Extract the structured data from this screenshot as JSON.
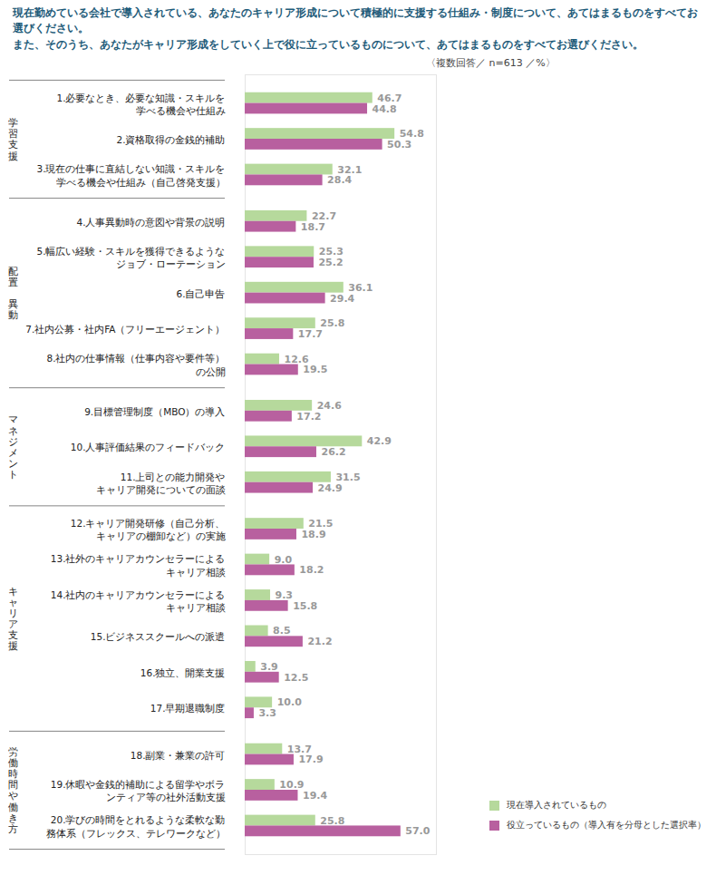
{
  "chart_data": {
    "type": "bar",
    "orientation": "horizontal",
    "title": "現在勤めている会社で導入されている、あなたのキャリア形成について積極的に支援する仕組み・制度について、あてはまるものをすべてお選びください。",
    "subtitle": "また、そのうち、あなたがキャリア形成をしていく上で役に立っているものについて、あてはまるものをすべてお選びください。",
    "annotation": "〈複数回答／ n=613 ／%〉",
    "categories": [
      "1.必要なとき、必要な知識・スキルを\n学べる機会や仕組み",
      "2.資格取得の金銭的補助",
      "3.現在の仕事に直結しない知識・スキルを\n学べる機会や仕組み（自己啓発支援）",
      "4.人事異動時の意図や背景の説明",
      "5.幅広い経験・スキルを獲得できるような\nジョブ・ローテーション",
      "6.自己申告",
      "7.社内公募・社内FA（フリーエージェント）",
      "8.社内の仕事情報（仕事内容や要件等）\nの公開",
      "9.目標管理制度（MBO）の導入",
      "10.人事評価結果のフィードバック",
      "11.上司との能力開発や\nキャリア開発についての面談",
      "12.キャリア開発研修（自己分析、\nキャリアの棚卸など）の実施",
      "13.社外のキャリアカウンセラーによる\nキャリア相談",
      "14.社内のキャリアカウンセラーによる\nキャリア相談",
      "15.ビジネススクールへの派遣",
      "16.独立、開業支援",
      "17.早期退職制度",
      "18.副業・兼業の許可",
      "19.休暇や金銭的補助による留学やボラ\nンティア等の社外活動支援",
      "20.学びの時間をとれるような柔軟な勤\n務体系（フレックス、テレワークなど）"
    ],
    "groups": [
      "学習支援",
      "学習支援",
      "学習支援",
      "配置 異動",
      "配置 異動",
      "配置 異動",
      "配置 異動",
      "配置 異動",
      "マネジメント",
      "マネジメント",
      "マネジメント",
      "キャリア支援",
      "キャリア支援",
      "キャリア支援",
      "キャリア支援",
      "キャリア支援",
      "キャリア支援",
      "労働時間や働き方",
      "労働時間や働き方",
      "労働時間や働き方"
    ],
    "series": [
      {
        "name": "現在導入されているもの",
        "color": "#b6d99c",
        "values": [
          46.7,
          54.8,
          32.1,
          22.7,
          25.3,
          36.1,
          25.8,
          12.6,
          24.6,
          42.9,
          31.5,
          21.5,
          9.0,
          9.3,
          8.5,
          3.9,
          10.0,
          13.7,
          10.9,
          25.8
        ],
        "value_labels": [
          "46.7",
          "54.8",
          "32.1",
          "22.7",
          "25.3",
          "36.1",
          "25.8",
          "12.6",
          "24.6",
          "42.9",
          "31.5",
          "21.5",
          "9.0",
          "9.3",
          "8.5",
          "3.9",
          "10.0",
          "13.7",
          "10.9",
          "25.8"
        ]
      },
      {
        "name": "役立っているもの（導入有を分母とした選択率）",
        "color": "#b8609f",
        "values": [
          44.8,
          50.3,
          28.4,
          18.7,
          25.2,
          29.4,
          17.7,
          19.5,
          17.2,
          26.2,
          24.9,
          18.9,
          18.2,
          15.8,
          21.2,
          12.5,
          3.3,
          17.9,
          19.4,
          57.0
        ],
        "value_labels": [
          "44.8",
          "50.3",
          "28.4",
          "18.7",
          "25.2",
          "29.4",
          "17.7",
          "19.5",
          "17.2",
          "26.2",
          "24.9",
          "18.9",
          "18.2",
          "15.8",
          "21.2",
          "12.5",
          "3.3",
          "17.9",
          "19.4",
          "57.0"
        ]
      }
    ],
    "xlim": [
      0,
      70
    ],
    "data_labels": true,
    "tick_labels": false,
    "grid": false,
    "legend": "bottom-right"
  }
}
